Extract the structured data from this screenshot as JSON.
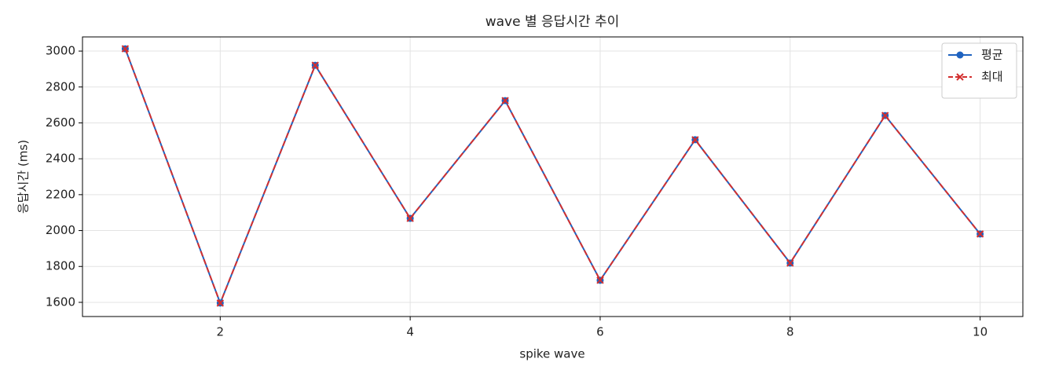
{
  "chart_data": {
    "type": "line",
    "title": "wave 별 응답시간 추이",
    "xlabel": "spike wave",
    "ylabel": "응답시간 (ms)",
    "x": [
      1,
      2,
      3,
      4,
      5,
      6,
      7,
      8,
      9,
      10
    ],
    "series": [
      {
        "name": "평균",
        "color": "#1f63c0",
        "marker": "o",
        "linestyle": "solid",
        "values": [
          3013,
          1596,
          2921,
          2068,
          2724,
          1723,
          2506,
          1819,
          2641,
          1981
        ]
      },
      {
        "name": "최대",
        "color": "#d32f2f",
        "marker": "x",
        "linestyle": "dashed",
        "values": [
          3013,
          1596,
          2921,
          2068,
          2724,
          1723,
          2506,
          1819,
          2641,
          1981
        ]
      }
    ],
    "xlim": [
      0.55,
      10.45
    ],
    "xticks": [
      2,
      4,
      6,
      8,
      10
    ],
    "ylim": [
      1521,
      3079
    ],
    "yticks": [
      1600,
      1800,
      2000,
      2200,
      2400,
      2600,
      2800,
      3000
    ],
    "grid": true,
    "legend": "upper right"
  }
}
